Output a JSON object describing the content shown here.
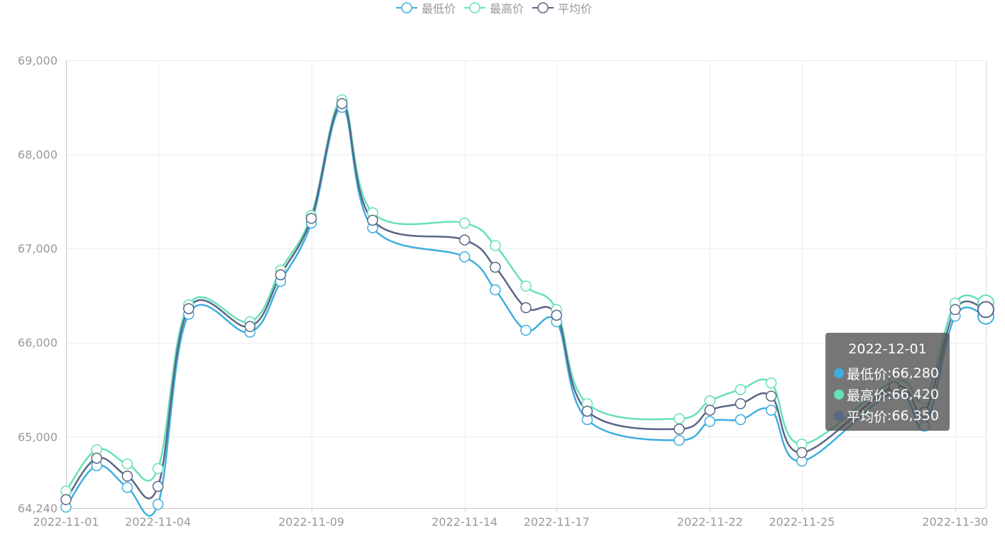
{
  "legend": [
    {
      "name": "最低价",
      "color": "#3eaee0"
    },
    {
      "name": "最高价",
      "color": "#66e0b8"
    },
    {
      "name": "平均价",
      "color": "#5b6685"
    }
  ],
  "tooltip": {
    "title": "2022-12-01",
    "rows": [
      {
        "label": "最低价",
        "value": "66,280",
        "color": "#3eaee0"
      },
      {
        "label": "最高价",
        "value": "66,420",
        "color": "#66e0b8"
      },
      {
        "label": "平均价",
        "value": "66,350",
        "color": "#5b6685"
      }
    ]
  },
  "chart_data": {
    "type": "line",
    "x": [
      "2022-11-01",
      "2022-11-02",
      "2022-11-03",
      "2022-11-04",
      "2022-11-05",
      "2022-11-07",
      "2022-11-08",
      "2022-11-09",
      "2022-11-10",
      "2022-11-11",
      "2022-11-14",
      "2022-11-15",
      "2022-11-16",
      "2022-11-17",
      "2022-11-18",
      "2022-11-21",
      "2022-11-22",
      "2022-11-23",
      "2022-11-24",
      "2022-11-25",
      "2022-11-28",
      "2022-11-29",
      "2022-11-30",
      "2022-12-01"
    ],
    "x_tick_labels": [
      "2022-11-01",
      "2022-11-04",
      "2022-11-09",
      "2022-11-14",
      "2022-11-17",
      "2022-11-22",
      "2022-11-25",
      "2022-11-30"
    ],
    "y_tick_labels": [
      "64,240",
      "65,000",
      "66,000",
      "67,000",
      "68,000",
      "69,000"
    ],
    "y_ticks": [
      64240,
      65000,
      66000,
      67000,
      68000,
      69000
    ],
    "ylim": [
      64240,
      69000
    ],
    "grid": true,
    "legend_position": "top-center",
    "series": [
      {
        "name": "最低价",
        "color": "#3eaee0",
        "values": [
          64250,
          64690,
          64460,
          64280,
          66300,
          66110,
          66650,
          67270,
          68500,
          67220,
          66910,
          66560,
          66130,
          66220,
          65180,
          64960,
          65160,
          65180,
          65280,
          64740,
          65470,
          65110,
          66280,
          66280
        ]
      },
      {
        "name": "最高价",
        "color": "#66e0b8",
        "values": [
          64420,
          64860,
          64710,
          64660,
          66400,
          66220,
          66770,
          67350,
          68580,
          67380,
          67270,
          67030,
          66600,
          66350,
          65350,
          65190,
          65380,
          65500,
          65570,
          64920,
          65590,
          65400,
          66420,
          66420
        ]
      },
      {
        "name": "平均价",
        "color": "#5b6685",
        "values": [
          64330,
          64770,
          64580,
          64470,
          66360,
          66170,
          66720,
          67320,
          68540,
          67300,
          67090,
          66800,
          66370,
          66290,
          65270,
          65080,
          65280,
          65350,
          65430,
          64830,
          65530,
          65260,
          66350,
          66350
        ]
      }
    ],
    "highlighted_index": 23
  }
}
